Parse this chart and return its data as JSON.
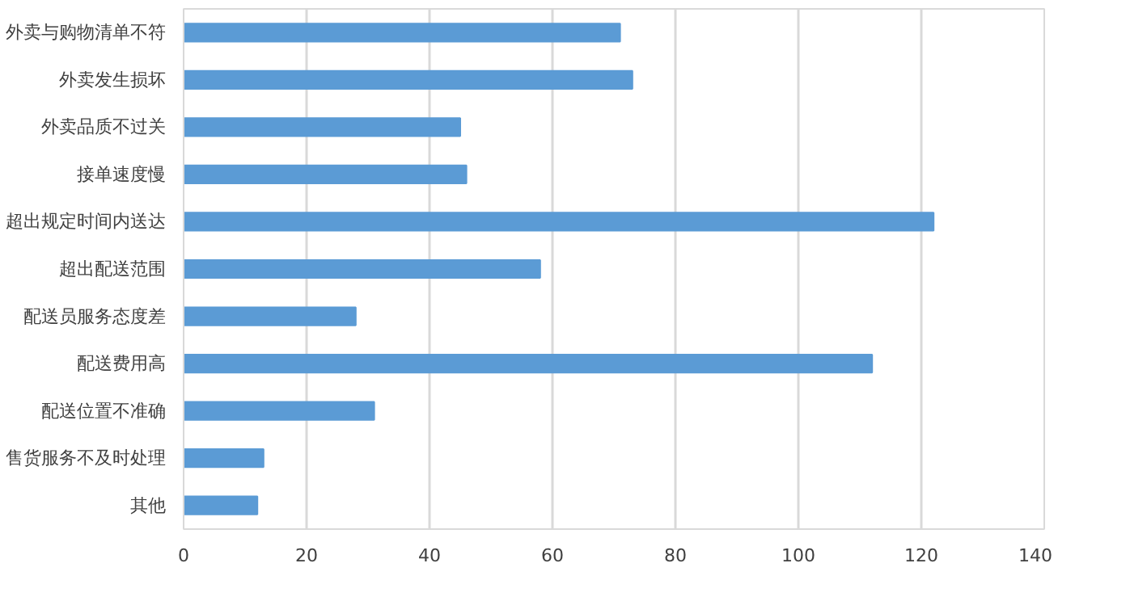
{
  "chart_data": {
    "type": "bar",
    "orientation": "horizontal",
    "categories": [
      "外卖与购物清单不符",
      "外卖发生损坏",
      "外卖品质不过关",
      "接单速度慢",
      "超出规定时间内送达",
      "超出配送范围",
      "配送员服务态度差",
      "配送费用高",
      "配送位置不准确",
      "售货服务不及时处理",
      "其他"
    ],
    "values": [
      71,
      73,
      45,
      46,
      122,
      58,
      28,
      112,
      31,
      13,
      12
    ],
    "color": "#5b9bd5",
    "xlim": [
      0,
      140
    ],
    "xticks": [
      0,
      20,
      40,
      60,
      80,
      100,
      120,
      140
    ],
    "grid": "x"
  }
}
